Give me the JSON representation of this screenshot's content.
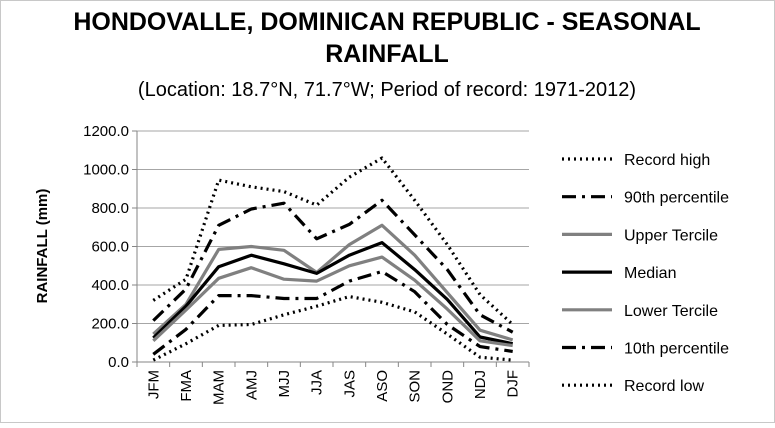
{
  "chart_data": {
    "type": "line",
    "title_line1": "HONDOVALLE, DOMINICAN REPUBLIC - SEASONAL",
    "title_line2": "RAINFALL",
    "subtitle": "(Location: 18.7°N, 71.7°W; Period of record: 1971-2012)",
    "xlabel": "",
    "ylabel": "RAINFALL (mm)",
    "ylim": [
      0,
      1200
    ],
    "ytick_values": [
      0,
      200,
      400,
      600,
      800,
      1000,
      1200
    ],
    "ytick_labels": [
      "0.0",
      "200.0",
      "400.0",
      "600.0",
      "800.0",
      "1000.0",
      "1200.0"
    ],
    "grid": true,
    "legend_position": "right",
    "categories": [
      "JFM",
      "FMA",
      "MAM",
      "AMJ",
      "MJJ",
      "JJA",
      "JAS",
      "ASO",
      "SON",
      "OND",
      "NDJ",
      "DJF"
    ],
    "series": [
      {
        "name": "Record high",
        "color": "#000000",
        "style": "dotted",
        "values": [
          320,
          430,
          945,
          910,
          885,
          815,
          960,
          1060,
          840,
          610,
          350,
          195
        ]
      },
      {
        "name": "90th percentile",
        "color": "#000000",
        "style": "dashdot",
        "values": [
          215,
          380,
          710,
          795,
          825,
          640,
          715,
          840,
          660,
          480,
          245,
          155
        ]
      },
      {
        "name": "Upper Tercile",
        "color": "#808080",
        "style": "solid",
        "values": [
          145,
          300,
          585,
          600,
          580,
          465,
          610,
          710,
          555,
          360,
          165,
          115
        ]
      },
      {
        "name": "Median",
        "color": "#000000",
        "style": "solid",
        "values": [
          125,
          290,
          495,
          555,
          510,
          460,
          555,
          620,
          480,
          325,
          130,
          95
        ]
      },
      {
        "name": "Lower Tercile",
        "color": "#808080",
        "style": "solid",
        "values": [
          110,
          270,
          435,
          490,
          430,
          420,
          500,
          545,
          425,
          275,
          110,
          85
        ]
      },
      {
        "name": "10th percentile",
        "color": "#000000",
        "style": "dashdot",
        "values": [
          40,
          170,
          345,
          345,
          330,
          330,
          420,
          470,
          365,
          195,
          80,
          55
        ]
      },
      {
        "name": "Record low",
        "color": "#000000",
        "style": "dotted",
        "values": [
          10,
          95,
          190,
          195,
          245,
          290,
          340,
          310,
          260,
          145,
          25,
          10
        ]
      }
    ]
  }
}
